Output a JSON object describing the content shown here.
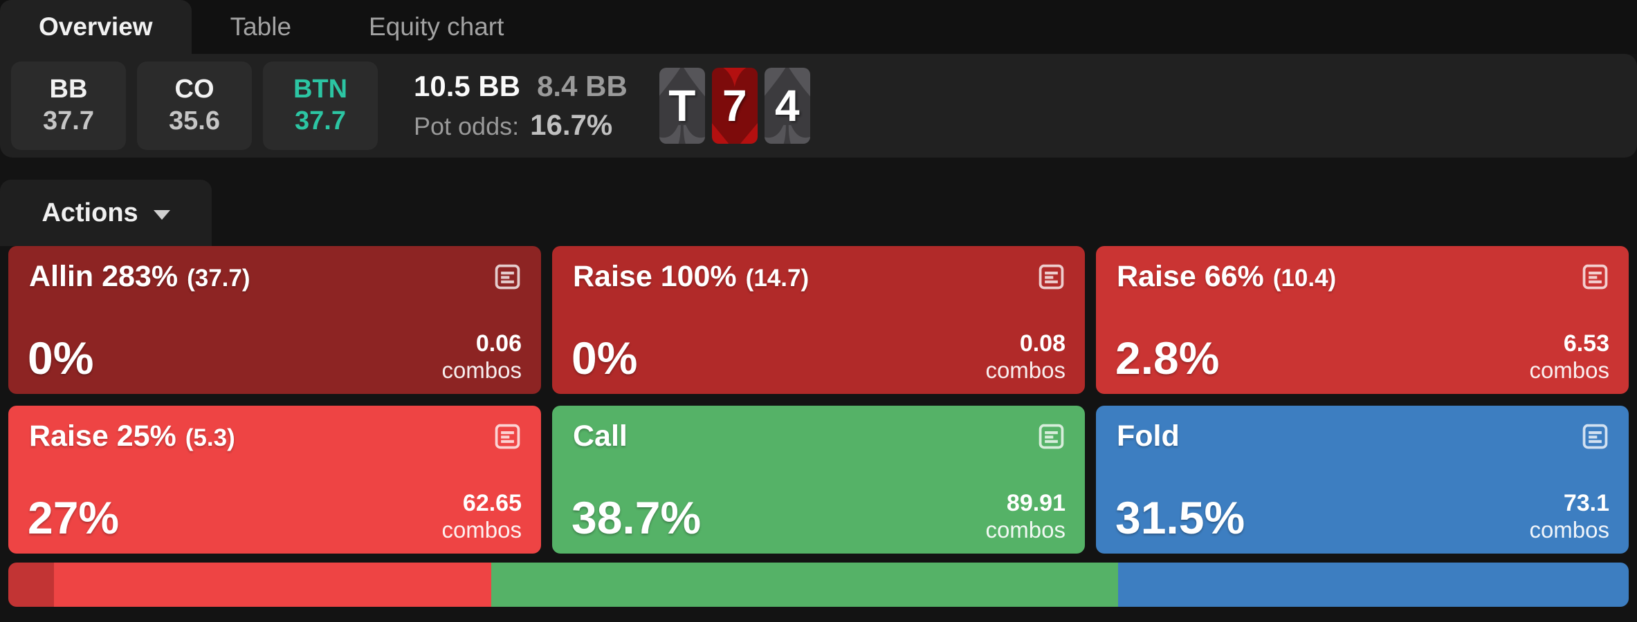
{
  "tabs": {
    "overview": "Overview",
    "table": "Table",
    "equity_chart": "Equity chart"
  },
  "header": {
    "positions": [
      {
        "name": "BB",
        "value": "37.7"
      },
      {
        "name": "CO",
        "value": "35.6"
      },
      {
        "name": "BTN",
        "value": "37.7",
        "accent_color": "#2cc5a3"
      }
    ],
    "pot": {
      "pot_size": "10.5 BB",
      "bet_size": "8.4 BB",
      "pot_odds_label": "Pot odds:",
      "pot_odds_value": "16.7%"
    },
    "board": [
      {
        "rank": "T",
        "suit": "spade"
      },
      {
        "rank": "7",
        "suit": "heart"
      },
      {
        "rank": "4",
        "suit": "spade"
      }
    ]
  },
  "actions": {
    "label": "Actions"
  },
  "labels": {
    "combos": "combos"
  },
  "action_cards": [
    {
      "title": "Allin 283%",
      "paren": "(37.7)",
      "frequency": "0%",
      "combos": "0.06",
      "color": "#8d2423"
    },
    {
      "title": "Raise 100%",
      "paren": "(14.7)",
      "frequency": "0%",
      "combos": "0.08",
      "color": "#b12a29"
    },
    {
      "title": "Raise 66%",
      "paren": "(10.4)",
      "frequency": "2.8%",
      "combos": "6.53",
      "color": "#ca3433"
    },
    {
      "title": "Raise 25%",
      "paren": "(5.3)",
      "frequency": "27%",
      "combos": "62.65",
      "color": "#ee4444"
    },
    {
      "title": "Call",
      "paren": "",
      "frequency": "38.7%",
      "combos": "89.91",
      "color": "#55b267"
    },
    {
      "title": "Fold",
      "paren": "",
      "frequency": "31.5%",
      "combos": "73.1",
      "color": "#3d7ec1"
    }
  ],
  "strategy_bar": [
    {
      "action": "Raise 66%",
      "width_pct": "2.8",
      "color": "#c23434"
    },
    {
      "action": "Raise 25%",
      "width_pct": "27",
      "color": "#ee4444"
    },
    {
      "action": "Call",
      "width_pct": "38.7",
      "color": "#55b267"
    },
    {
      "action": "Fold",
      "width_pct": "31.5",
      "color": "#3d7ec1"
    }
  ]
}
